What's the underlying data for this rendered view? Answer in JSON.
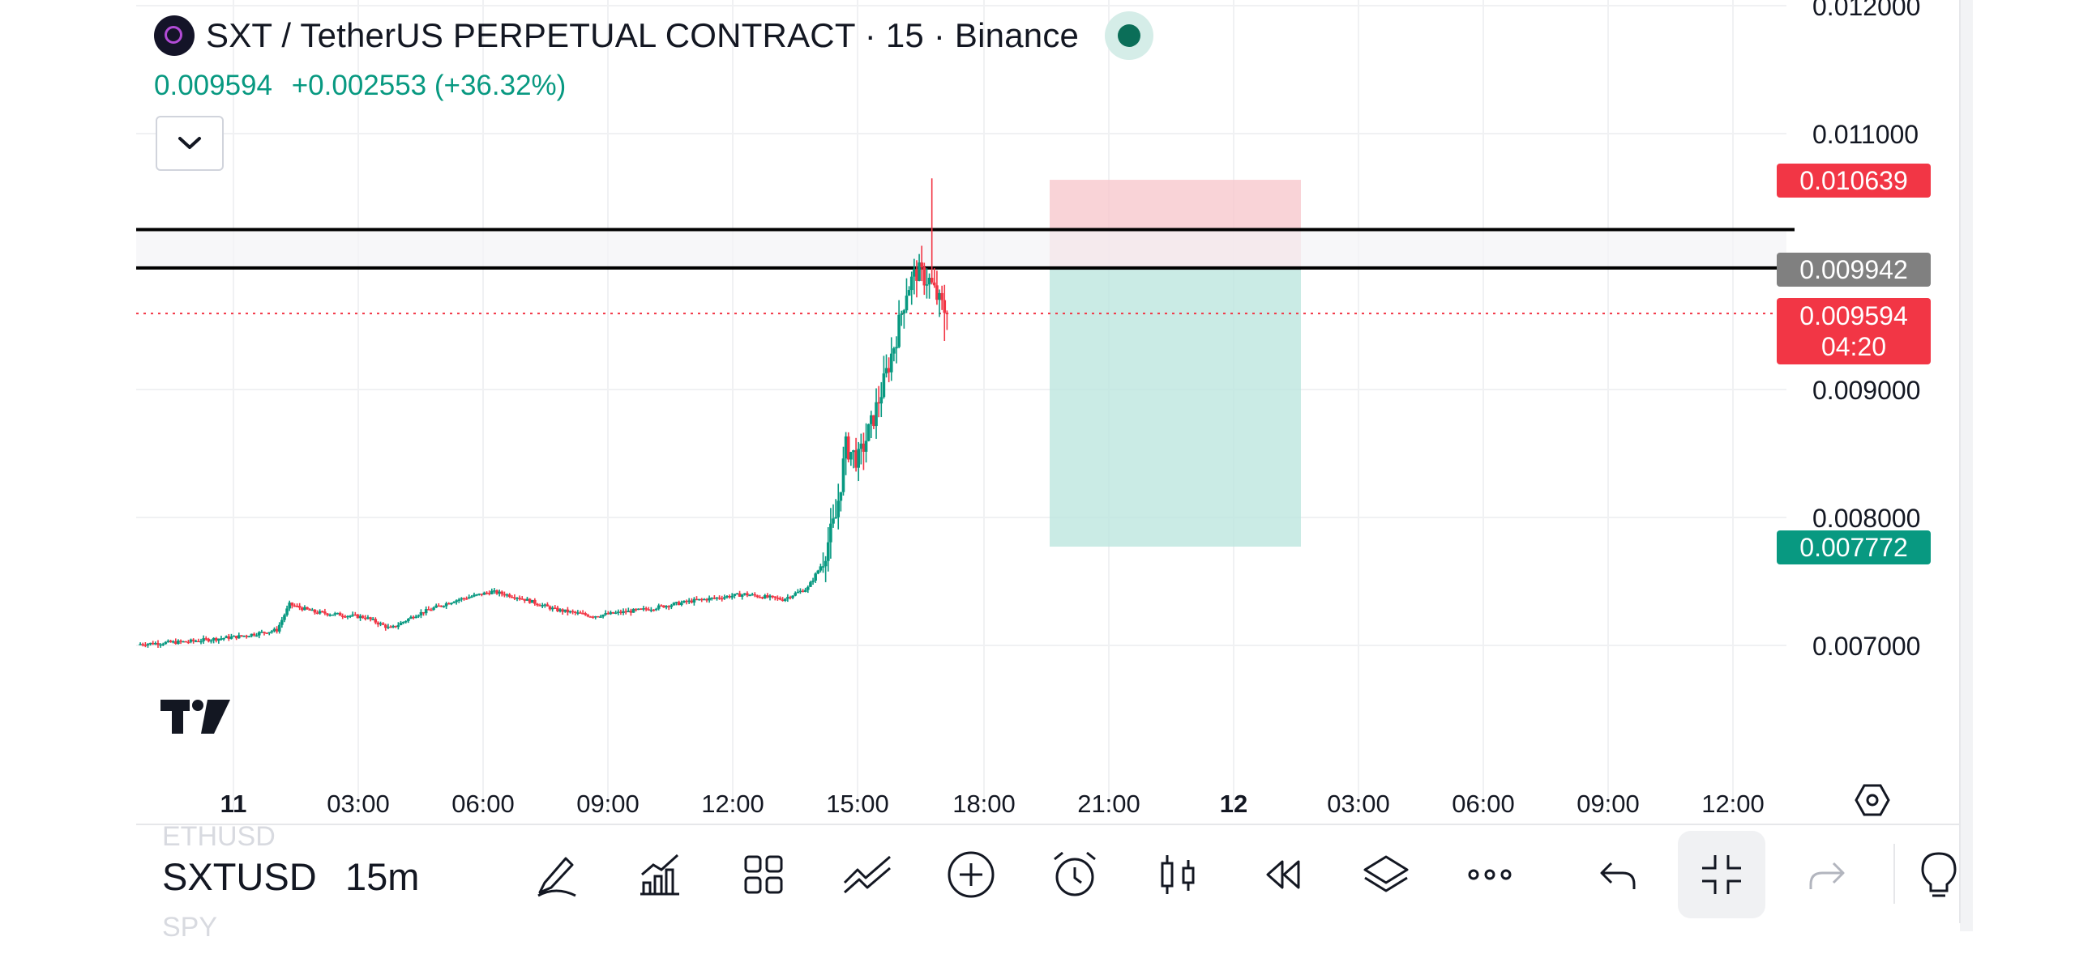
{
  "header": {
    "title": "SXT / TetherUS PERPETUAL CONTRACT · 15 · Binance",
    "last_price": "0.009594",
    "change": "+0.002553 (+36.32%)"
  },
  "price_axis": {
    "ticks": [
      "0.012000",
      "0.011000",
      "0.009000",
      "0.008000",
      "0.007000"
    ]
  },
  "price_labels": {
    "stop": "0.010639",
    "entry": "0.009942",
    "current": "0.009594",
    "countdown": "04:20",
    "target": "0.007772"
  },
  "time_axis": {
    "labels": [
      "11",
      "03:00",
      "06:00",
      "09:00",
      "12:00",
      "15:00",
      "18:00",
      "21:00",
      "12",
      "03:00",
      "06:00",
      "09:00",
      "12:00"
    ],
    "bold": [
      true,
      false,
      false,
      false,
      false,
      false,
      false,
      false,
      true,
      false,
      false,
      false,
      false
    ]
  },
  "toolbar": {
    "symbol": "SXTUSD",
    "symbol_above": "ETHUSD",
    "symbol_below": "SPY",
    "interval": "15m",
    "icons": [
      "brush-icon",
      "indicators-icon",
      "templates-icon",
      "drawing-tools-icon",
      "add-icon",
      "alert-icon",
      "bar-style-icon",
      "replay-icon",
      "layers-icon",
      "more-icon",
      "undo-icon",
      "fullscreen-exit-icon",
      "redo-icon",
      "lightbulb-icon"
    ]
  },
  "colors": {
    "up": "#089981",
    "down": "#f23645",
    "neutral_label": "#808080",
    "stop_zone": "#f7c8cd",
    "target_zone": "#bde6df"
  },
  "chart_data": {
    "type": "candlestick",
    "interval": "15m",
    "y_axis_ticks": [
      0.007,
      0.008,
      0.009,
      0.011,
      0.012
    ],
    "horizontal_lines": [
      0.01025,
      0.00995
    ],
    "last_price": 0.009594,
    "position": {
      "stop": 0.010639,
      "entry": 0.009942,
      "target": 0.007772
    }
  }
}
